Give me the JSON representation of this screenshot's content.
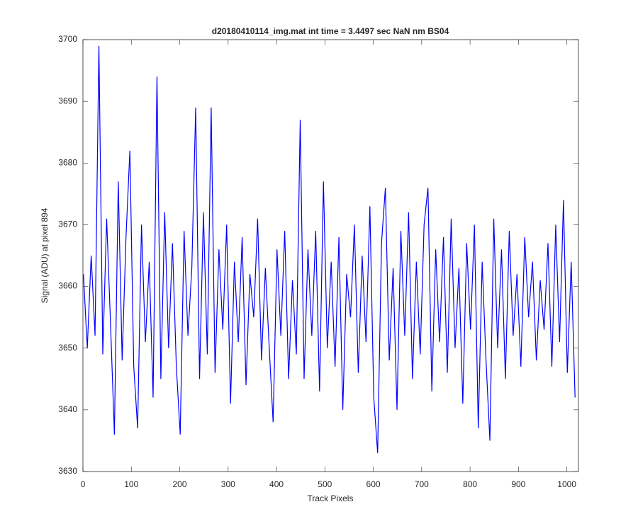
{
  "chart_data": {
    "type": "line",
    "title": "d20180410114_img.mat int time = 3.4497 sec  NaN nm BS04",
    "x_label": "Track Pixels",
    "y_label": "Signal (ADU) at pixel 894",
    "x": [
      1,
      9,
      17,
      25,
      33,
      41,
      49,
      57,
      65,
      73,
      81,
      89,
      97,
      105,
      113,
      121,
      129,
      137,
      145,
      153,
      161,
      169,
      177,
      185,
      193,
      201,
      209,
      217,
      225,
      233,
      241,
      249,
      257,
      265,
      273,
      281,
      289,
      297,
      305,
      313,
      321,
      329,
      337,
      345,
      353,
      361,
      369,
      377,
      385,
      393,
      401,
      409,
      417,
      425,
      433,
      441,
      449,
      457,
      465,
      473,
      481,
      489,
      497,
      505,
      513,
      521,
      529,
      537,
      545,
      553,
      561,
      569,
      577,
      585,
      593,
      601,
      609,
      617,
      625,
      633,
      641,
      649,
      657,
      665,
      673,
      681,
      689,
      697,
      705,
      713,
      721,
      729,
      737,
      745,
      753,
      761,
      769,
      777,
      785,
      793,
      801,
      809,
      817,
      825,
      833,
      841,
      849,
      857,
      865,
      873,
      881,
      889,
      897,
      905,
      913,
      921,
      929,
      937,
      945,
      953,
      961,
      969,
      977,
      985,
      993,
      1001,
      1009,
      1017
    ],
    "series": [
      {
        "color": "#0000ff",
        "values": [
          3662,
          3650,
          3665,
          3652,
          3699,
          3649,
          3671,
          3654,
          3636,
          3677,
          3648,
          3668,
          3682,
          3647,
          3637,
          3670,
          3651,
          3664,
          3642,
          3694,
          3645,
          3672,
          3650,
          3667,
          3647,
          3636,
          3669,
          3652,
          3663,
          3689,
          3645,
          3672,
          3649,
          3689,
          3646,
          3666,
          3653,
          3670,
          3641,
          3664,
          3651,
          3668,
          3644,
          3662,
          3655,
          3671,
          3648,
          3663,
          3650,
          3638,
          3666,
          3652,
          3669,
          3645,
          3661,
          3649,
          3687,
          3645,
          3666,
          3652,
          3669,
          3643,
          3677,
          3650,
          3664,
          3647,
          3668,
          3640,
          3662,
          3655,
          3670,
          3646,
          3665,
          3651,
          3673,
          3642,
          3633,
          3667,
          3676,
          3648,
          3663,
          3640,
          3669,
          3652,
          3672,
          3645,
          3664,
          3649,
          3670,
          3676,
          3643,
          3666,
          3651,
          3668,
          3646,
          3671,
          3650,
          3663,
          3641,
          3667,
          3653,
          3670,
          3637,
          3664,
          3648,
          3635,
          3671,
          3650,
          3666,
          3645,
          3669,
          3652,
          3662,
          3647,
          3668,
          3655,
          3664,
          3648,
          3661,
          3653,
          3667,
          3647,
          3670,
          3651,
          3674,
          3646,
          3664,
          3642
        ]
      }
    ],
    "xlim": [
      0,
      1024
    ],
    "xticks": [
      0,
      100,
      200,
      300,
      400,
      500,
      600,
      700,
      800,
      900,
      1000
    ],
    "ylim": [
      3630,
      3700
    ],
    "yticks": [
      3630,
      3640,
      3650,
      3660,
      3670,
      3680,
      3690,
      3700
    ]
  }
}
